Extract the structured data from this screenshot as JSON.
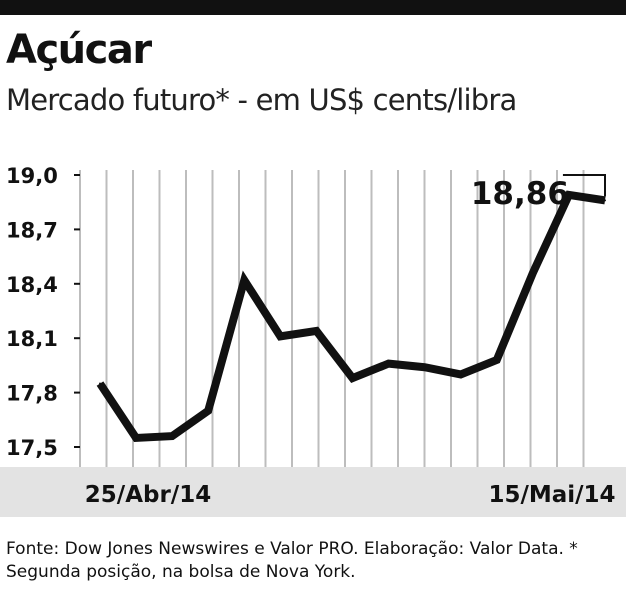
{
  "header": {
    "title": "Açúcar",
    "subtitle": "Mercado futuro* - em US$ cents/libra"
  },
  "chart_data": {
    "type": "line",
    "ylim": [
      17.5,
      19.0
    ],
    "yticks": [
      17.5,
      17.8,
      18.1,
      18.4,
      18.7,
      19.0
    ],
    "ytick_labels": [
      "17,5",
      "17,8",
      "18,1",
      "18,4",
      "18,7",
      "19,0"
    ],
    "xtick_labels": [
      "25/Abr/14",
      "15/Mai/14"
    ],
    "x": [
      "25/Abr/14",
      "28/Abr/14",
      "29/Abr/14",
      "30/Abr/14",
      "01/Mai/14",
      "02/Mai/14",
      "05/Mai/14",
      "06/Mai/14",
      "07/Mai/14",
      "08/Mai/14",
      "09/Mai/14",
      "12/Mai/14",
      "13/Mai/14",
      "14/Mai/14",
      "15/Mai/14"
    ],
    "values": [
      17.85,
      17.55,
      17.56,
      17.7,
      18.42,
      18.11,
      18.14,
      17.88,
      17.96,
      17.94,
      17.9,
      17.98,
      18.46,
      18.89,
      18.86
    ],
    "annotation": "18,86",
    "grid": "vertical",
    "line_color": "#111111",
    "band_color": "#e3e3e3"
  },
  "source": {
    "text": "Fonte: Dow Jones Newswires e Valor PRO. Elaboração: Valor Data. * Segunda posição, na bolsa de Nova York."
  }
}
